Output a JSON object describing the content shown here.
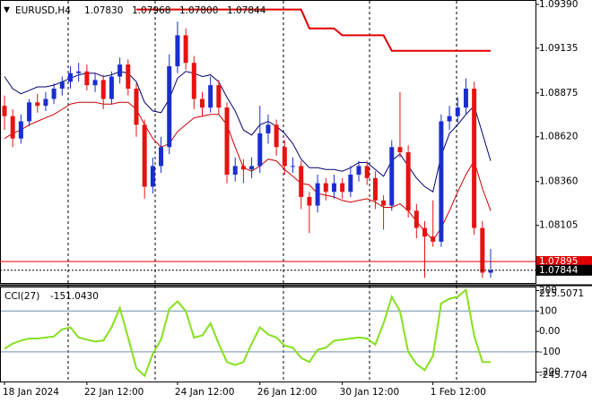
{
  "chart_data": [
    {
      "type": "candlestick",
      "title": "EURUSD,H4",
      "header_prices": [
        "1.07830",
        "1.07968",
        "1.07800",
        "1.07844"
      ],
      "categories": [
        "18 Jan 2024",
        null,
        null,
        null,
        null,
        null,
        null,
        null,
        null,
        null,
        "22 Jan 12:00",
        null,
        null,
        null,
        null,
        null,
        null,
        null,
        null,
        null,
        null,
        "24 Jan 12:00",
        null,
        null,
        null,
        null,
        null,
        null,
        null,
        null,
        null,
        "26 Jan 12:00",
        null,
        null,
        null,
        null,
        null,
        null,
        null,
        null,
        null,
        "30 Jan 12:00",
        null,
        null,
        null,
        null,
        null,
        null,
        null,
        null,
        null,
        null,
        "1 Feb 12:00",
        null,
        null,
        null,
        null,
        null,
        null,
        null
      ],
      "open": [
        1.088,
        1.0874,
        1.0861,
        1.0871,
        1.0882,
        1.088,
        1.0884,
        1.089,
        1.0894,
        1.0899,
        1.09,
        1.0892,
        1.0895,
        1.0884,
        1.0897,
        1.0904,
        1.089,
        1.0869,
        1.0833,
        1.0845,
        1.0856,
        1.0903,
        1.0921,
        1.0905,
        1.0884,
        1.0879,
        1.0892,
        1.0879,
        1.084,
        1.0845,
        1.0843,
        1.0845,
        1.0864,
        1.0869,
        1.0856,
        1.0845,
        1.0845,
        1.0827,
        1.0822,
        1.0835,
        1.083,
        1.0835,
        1.083,
        1.084,
        1.0845,
        1.0838,
        1.0825,
        1.0822,
        1.0856,
        1.0853,
        1.0819,
        1.0809,
        1.0804,
        1.0801,
        1.0871,
        1.0874,
        1.0879,
        1.089,
        1.0809,
        1.0783
      ],
      "high": [
        1.0886,
        1.0878,
        1.0875,
        1.0884,
        1.0887,
        1.0888,
        1.0893,
        1.0897,
        1.0903,
        1.0905,
        1.0904,
        1.0899,
        1.0898,
        1.09,
        1.0908,
        1.0907,
        1.0893,
        1.0872,
        1.085,
        1.0862,
        1.091,
        1.0929,
        1.0925,
        1.0909,
        1.0888,
        1.0897,
        1.0895,
        1.0882,
        1.085,
        1.0849,
        1.085,
        1.088,
        1.0875,
        1.0872,
        1.086,
        1.085,
        1.0848,
        1.083,
        1.084,
        1.0838,
        1.084,
        1.0838,
        1.0845,
        1.0848,
        1.0848,
        1.0842,
        1.0828,
        1.086,
        1.0888,
        1.0857,
        1.0823,
        1.0813,
        1.0825,
        1.0875,
        1.088,
        1.0885,
        1.0896,
        1.0894,
        1.0813,
        1.07968
      ],
      "low": [
        1.0866,
        1.0856,
        1.0858,
        1.0868,
        1.0876,
        1.0877,
        1.0881,
        1.0886,
        1.089,
        1.0894,
        1.0889,
        1.0888,
        1.0878,
        1.0881,
        1.0893,
        1.0886,
        1.0862,
        1.0826,
        1.0829,
        1.0841,
        1.0852,
        1.0899,
        1.0901,
        1.0878,
        1.0874,
        1.0876,
        1.0875,
        1.0835,
        1.0836,
        1.0835,
        1.0838,
        1.0841,
        1.0858,
        1.0851,
        1.084,
        1.0841,
        1.082,
        1.0806,
        1.0818,
        1.0825,
        1.0826,
        1.0826,
        1.0827,
        1.0836,
        1.0834,
        1.082,
        1.0808,
        1.0819,
        1.085,
        1.0815,
        1.0803,
        1.078,
        1.0798,
        1.0798,
        1.0866,
        1.087,
        1.0875,
        1.0805,
        1.078,
        1.078
      ],
      "close": [
        1.0874,
        1.0861,
        1.0871,
        1.0882,
        1.088,
        1.0884,
        1.089,
        1.0894,
        1.0899,
        1.09,
        1.0892,
        1.0895,
        1.0884,
        1.0897,
        1.0904,
        1.089,
        1.0869,
        1.0833,
        1.0845,
        1.0856,
        1.0903,
        1.0921,
        1.0905,
        1.0884,
        1.0879,
        1.0892,
        1.0879,
        1.084,
        1.0845,
        1.0843,
        1.0845,
        1.0864,
        1.0869,
        1.0856,
        1.0845,
        1.0845,
        1.0827,
        1.0822,
        1.0835,
        1.083,
        1.0835,
        1.083,
        1.084,
        1.0845,
        1.0838,
        1.0825,
        1.0822,
        1.0856,
        1.0853,
        1.0819,
        1.0809,
        1.0804,
        1.0801,
        1.0871,
        1.0874,
        1.0879,
        1.089,
        1.0809,
        1.0783,
        1.07844
      ],
      "up_color": "#1a2ed0",
      "down_color": "#e81212",
      "lines": [
        {
          "color": "#00006e",
          "width": 1,
          "values": [
            1.0897,
            1.089,
            1.0887,
            1.0889,
            1.0891,
            1.0891,
            1.0892,
            1.0894,
            1.0896,
            1.0898,
            1.0899,
            1.0899,
            1.0897,
            1.0898,
            1.09,
            1.0899,
            1.0894,
            1.0882,
            1.0877,
            1.0876,
            1.0884,
            1.0896,
            1.09,
            1.0899,
            1.0897,
            1.0898,
            1.0894,
            1.0885,
            1.0877,
            1.0866,
            1.0863,
            1.0869,
            1.0871,
            1.0868,
            1.0864,
            1.0858,
            1.0849,
            1.0844,
            1.0844,
            1.0843,
            1.0843,
            1.0842,
            1.0844,
            1.0847,
            1.0847,
            1.0843,
            1.0839,
            1.0848,
            1.0852,
            1.0845,
            1.0838,
            1.0833,
            1.083,
            1.0851,
            1.0864,
            1.0869,
            1.0875,
            1.088,
            1.0864,
            1.0848
          ]
        },
        {
          "color": "#cc0000",
          "width": 1,
          "values": [
            1.0861,
            1.0864,
            1.0866,
            1.0869,
            1.0871,
            1.0873,
            1.0875,
            1.0878,
            1.0881,
            1.0882,
            1.0882,
            1.0882,
            1.0881,
            1.0881,
            1.0882,
            1.0882,
            1.0878,
            1.0869,
            1.0861,
            1.0856,
            1.0858,
            1.0865,
            1.0869,
            1.0873,
            1.0874,
            1.0875,
            1.0875,
            1.0869,
            1.0856,
            1.0844,
            1.0842,
            1.0845,
            1.0849,
            1.0848,
            1.0843,
            1.0839,
            1.0835,
            1.0834,
            1.0829,
            1.0828,
            1.0827,
            1.0825,
            1.0824,
            1.0825,
            1.0826,
            1.0824,
            1.0821,
            1.0821,
            1.0823,
            1.0819,
            1.0813,
            1.0807,
            1.0802,
            1.0809,
            1.0819,
            1.083,
            1.084,
            1.0848,
            1.0832,
            1.0819
          ]
        },
        {
          "color": "#e00000",
          "width": 2,
          "values": [
            null,
            null,
            null,
            null,
            null,
            null,
            null,
            null,
            null,
            null,
            null,
            null,
            null,
            null,
            null,
            null,
            1.0936,
            1.0936,
            1.0936,
            1.0936,
            1.0936,
            1.0936,
            1.0936,
            1.0936,
            1.0936,
            1.0936,
            1.0936,
            1.0936,
            1.0936,
            1.0936,
            1.0936,
            1.0936,
            1.0936,
            1.0936,
            1.0936,
            1.0936,
            1.0936,
            1.0925,
            1.0925,
            1.0925,
            1.0925,
            1.0921,
            1.0921,
            1.0921,
            1.0921,
            1.0921,
            1.0921,
            1.0912,
            1.0912,
            1.0912,
            1.0912,
            1.0912,
            1.0912,
            1.0912,
            1.0912,
            1.0912,
            1.0912,
            1.0912,
            1.0912,
            1.0912
          ]
        }
      ],
      "price_lines": [
        {
          "value": 1.07895,
          "color": "#e00000"
        },
        {
          "value": 1.07844,
          "color": "#000000"
        }
      ],
      "ylim": [
        1.0777,
        1.0941
      ],
      "yticks": [
        {
          "value": 1.0939,
          "label": "1.09390"
        },
        1.09135,
        1.08875,
        {
          "value": 1.0862,
          "label": "1.08620"
        },
        {
          "value": 1.0836,
          "label": "1.08360"
        },
        1.08105
      ]
    },
    {
      "type": "line",
      "title": "CCI(27)",
      "title_value": "-151.0430",
      "color": "#86e01e",
      "values": [
        -85,
        -60,
        -45,
        -35,
        -35,
        -30,
        -25,
        10,
        20,
        -30,
        -40,
        -50,
        -45,
        20,
        115,
        -30,
        -180,
        -218,
        -110,
        -40,
        110,
        147,
        100,
        -30,
        -20,
        40,
        -60,
        -150,
        -165,
        -150,
        -60,
        20,
        -15,
        -30,
        -70,
        -80,
        -130,
        -150,
        -90,
        -80,
        -45,
        -40,
        -35,
        -30,
        -35,
        -65,
        40,
        170,
        100,
        -100,
        -160,
        -190,
        -120,
        138,
        160,
        170,
        204,
        -20,
        -150,
        -151.043
      ],
      "ylim": [
        -245.7704,
        215.5071
      ],
      "yticks": [
        200,
        100,
        {
          "value": 0,
          "label": "0.00"
        },
        -100,
        -200
      ],
      "levels": [
        100,
        -100
      ],
      "level_color": "#6f8fb0"
    }
  ]
}
